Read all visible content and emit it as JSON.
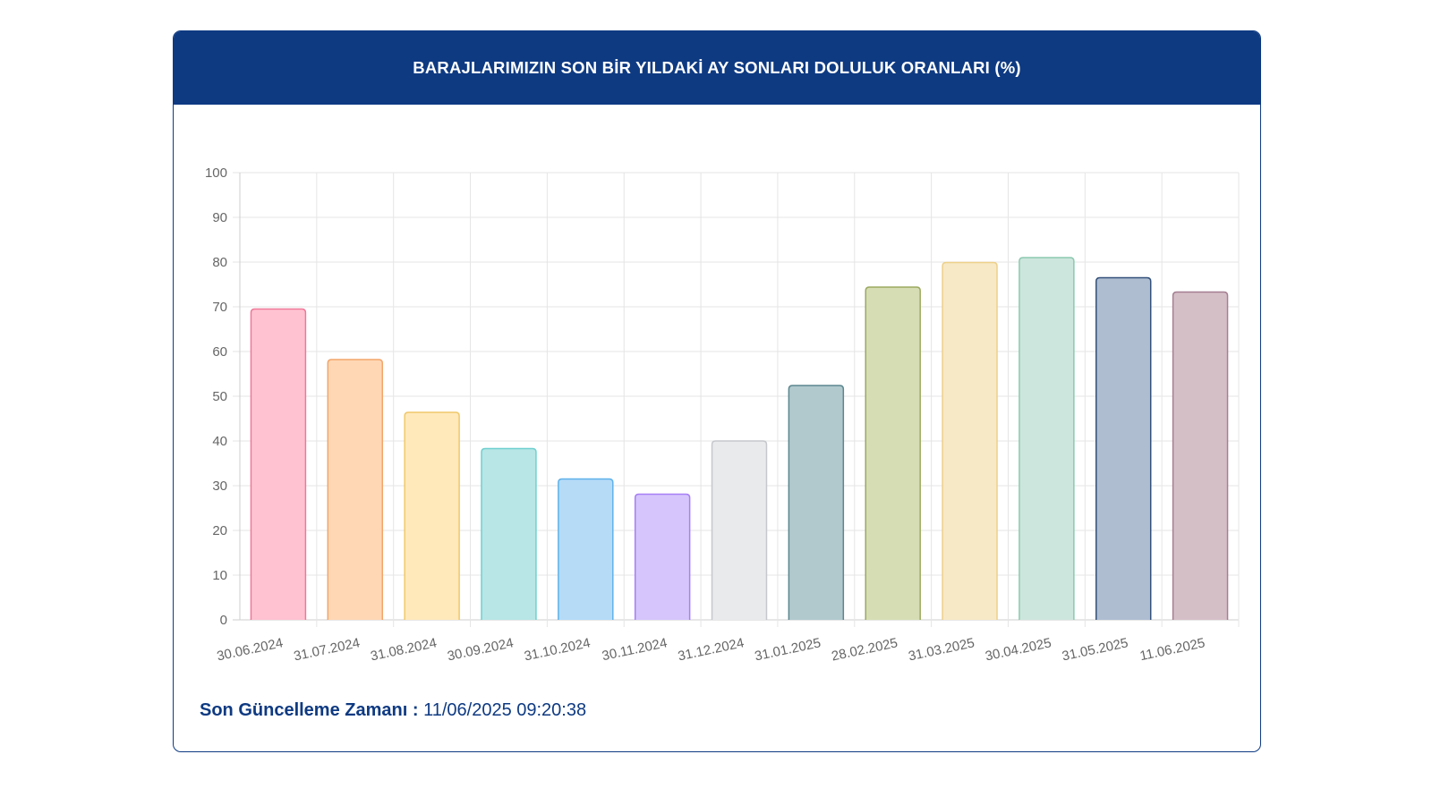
{
  "header": {
    "title": "BARAJLARIMIZIN SON BİR YILDAKİ AY SONLARI DOLULUK ORANLARI (%)"
  },
  "footer": {
    "label": "Son Güncelleme Zamanı :",
    "value": "11/06/2025 09:20:38"
  },
  "chart_data": {
    "type": "bar",
    "title": "BARAJLARIMIZIN SON BİR YILDAKİ AY SONLARI DOLULUK ORANLARI (%)",
    "xlabel": "",
    "ylabel": "",
    "ylim": [
      0,
      100
    ],
    "yticks": [
      0,
      10,
      20,
      30,
      40,
      50,
      60,
      70,
      80,
      90,
      100
    ],
    "grid": true,
    "legend": "none",
    "categories": [
      "30.06.2024",
      "31.07.2024",
      "31.08.2024",
      "30.09.2024",
      "31.10.2024",
      "30.11.2024",
      "31.12.2024",
      "31.01.2025",
      "28.02.2025",
      "31.03.2025",
      "30.04.2025",
      "31.05.2025",
      "11.06.2025"
    ],
    "values": [
      69.5,
      58.2,
      46.4,
      38.3,
      31.5,
      28.1,
      40.0,
      52.4,
      74.4,
      79.9,
      81.0,
      76.5,
      73.3
    ],
    "fill_colors": [
      "#ffc2d1",
      "#ffd7b5",
      "#ffe9bb",
      "#b8e6e6",
      "#b5dbf7",
      "#d5c5fc",
      "#e9eaec",
      "#b1c9cd",
      "#d6ddb5",
      "#f8e9c6",
      "#cde6dd",
      "#afbdd1",
      "#d5bfc7"
    ],
    "border_colors": [
      "#f07898",
      "#f2a56a",
      "#f0c86a",
      "#6fd0cf",
      "#5fb2ea",
      "#a67ff5",
      "#c5c7cc",
      "#5c8790",
      "#9aa95e",
      "#ecd08a",
      "#8cc9b1",
      "#33507a",
      "#a57f90"
    ]
  }
}
